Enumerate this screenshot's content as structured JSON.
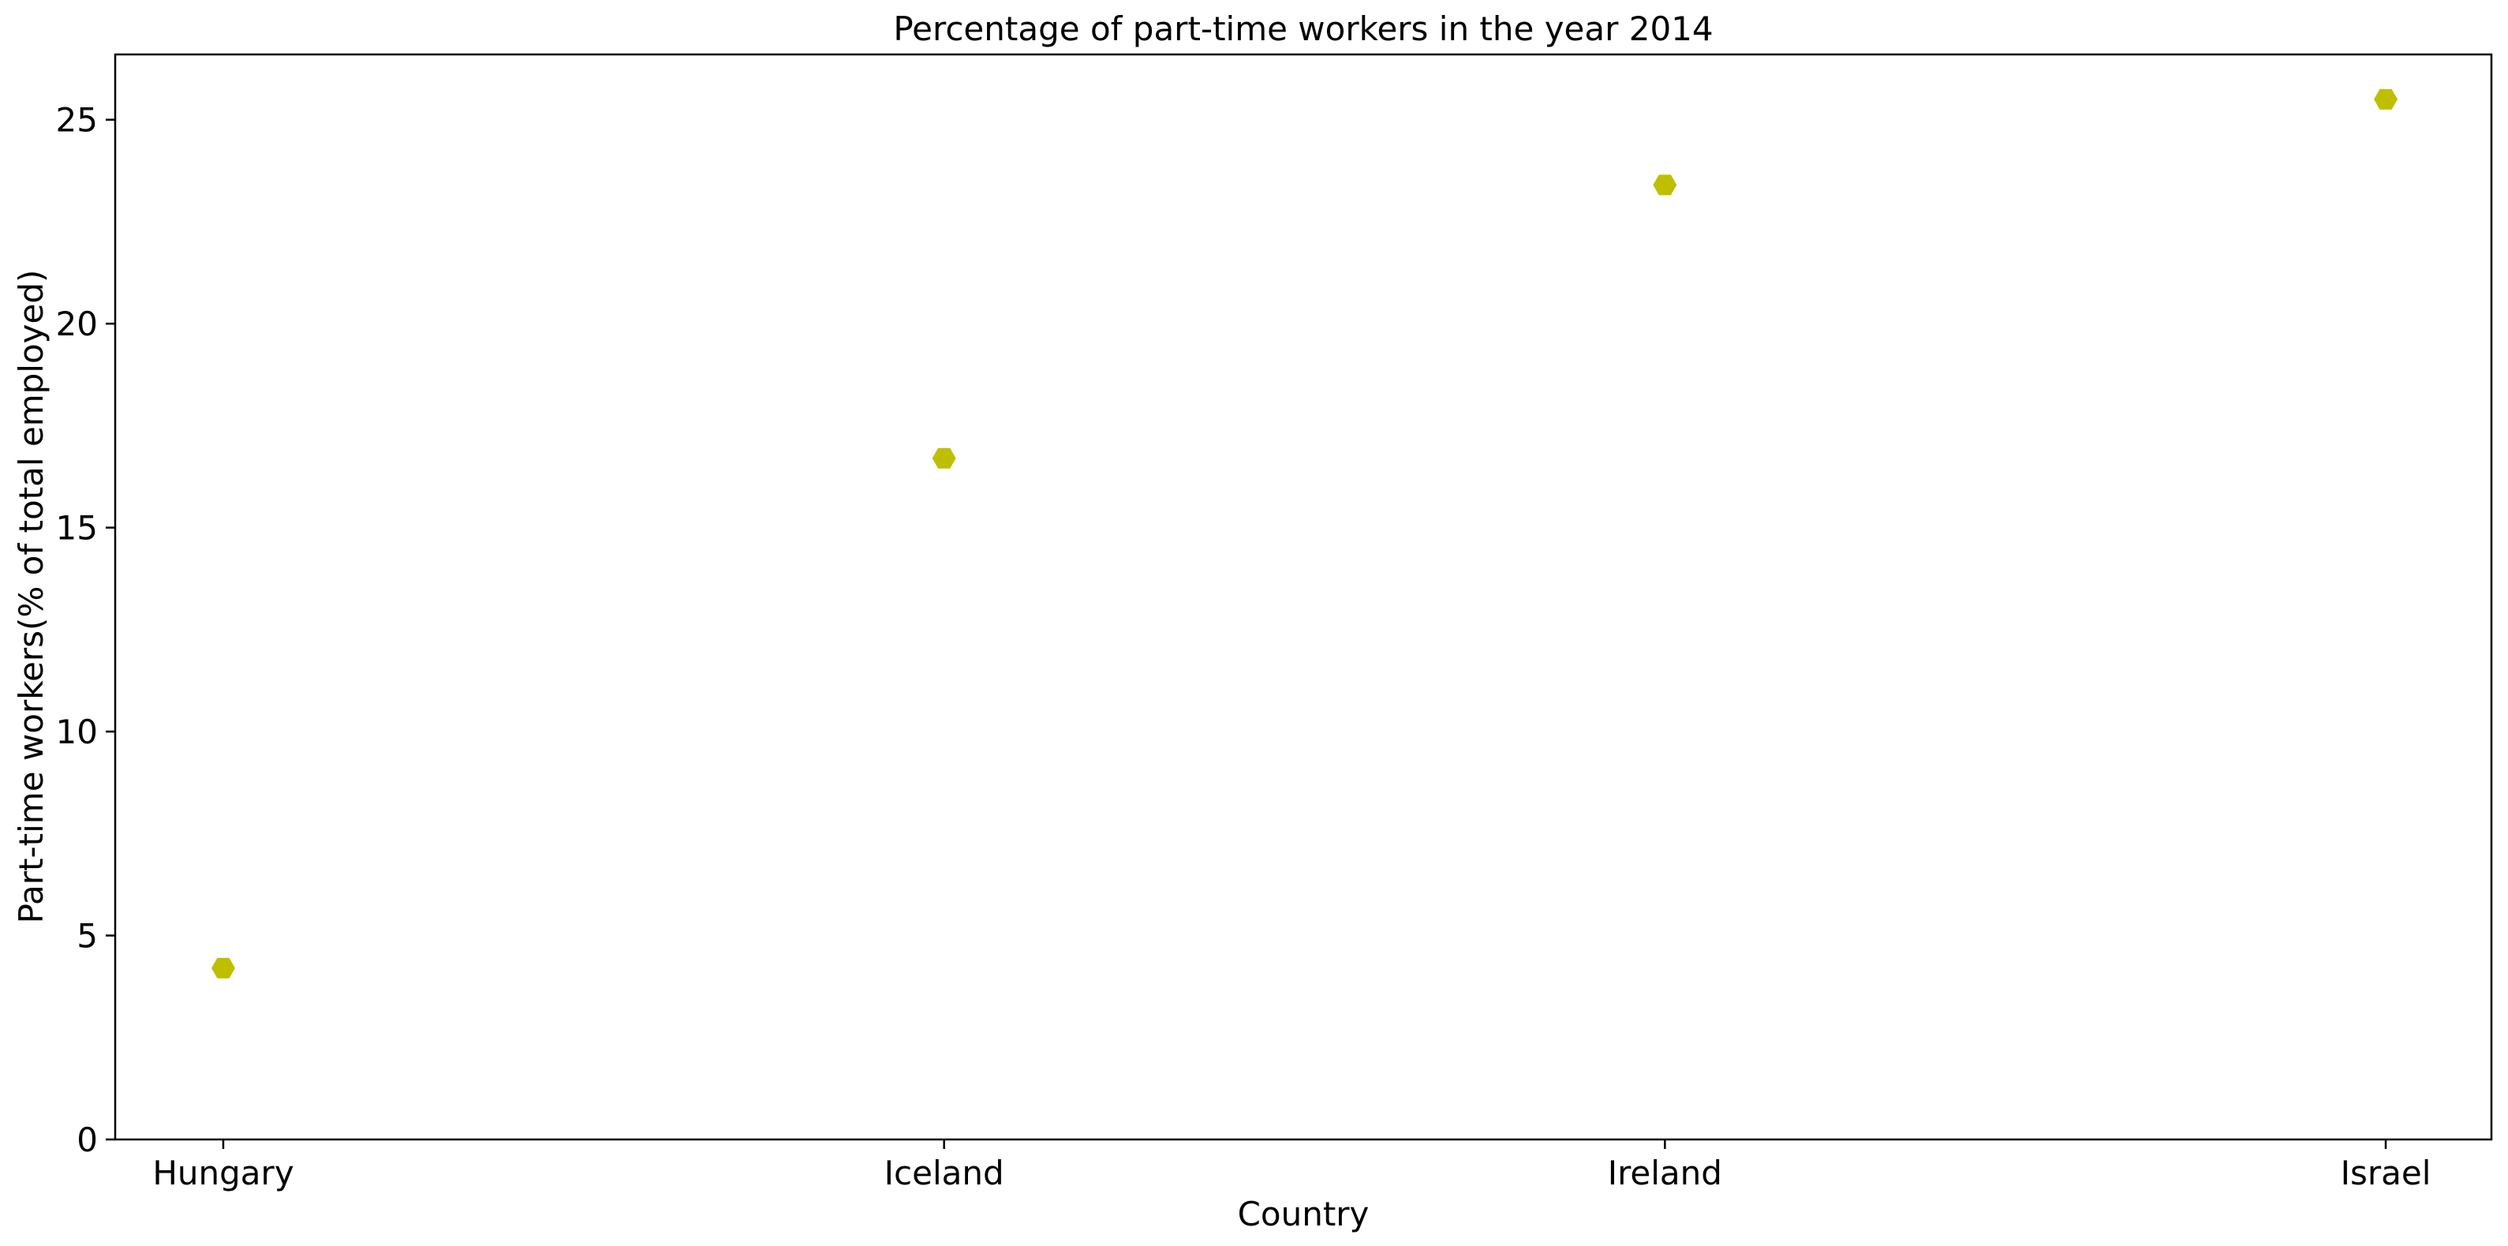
{
  "chart_data": {
    "type": "scatter",
    "title": "Percentage of part-time workers in the year 2014",
    "xlabel": "Country",
    "ylabel": "Part-time workers(% of total employed)",
    "categories": [
      "Hungary",
      "Iceland",
      "Ireland",
      "Israel"
    ],
    "series": [
      {
        "values": [
          4.2,
          16.7,
          23.4,
          25.5
        ],
        "color": "#bfbf00",
        "marker": "hexagon"
      }
    ],
    "ylim": [
      0,
      26.6
    ],
    "yticks": [
      0,
      5,
      10,
      15,
      20,
      25
    ],
    "grid": false,
    "legend": "none"
  }
}
